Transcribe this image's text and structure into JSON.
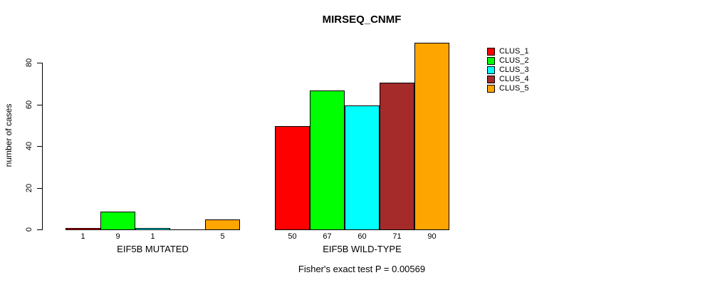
{
  "title": "MIRSEQ_CNMF",
  "ylabel": "number of cases",
  "footer": "Fisher's exact test P = 0.00569",
  "chart_data": {
    "type": "bar",
    "title": "MIRSEQ_CNMF",
    "xlabel": "",
    "ylabel": "number of cases",
    "ylim": [
      0,
      90
    ],
    "yticks": [
      0,
      20,
      40,
      60,
      80
    ],
    "grid": false,
    "annotation": "Fisher's exact test P = 0.00569",
    "series_colors": [
      "#FF0000",
      "#00FF00",
      "#00FFFF",
      "#A52A2A",
      "#FFA500"
    ],
    "legend": {
      "position": "top-right",
      "entries": [
        {
          "label": "CLUS_1",
          "color": "#FF0000"
        },
        {
          "label": "CLUS_2",
          "color": "#00FF00"
        },
        {
          "label": "CLUS_3",
          "color": "#00FFFF"
        },
        {
          "label": "CLUS_4",
          "color": "#A52A2A"
        },
        {
          "label": "CLUS_5",
          "color": "#FFA500"
        }
      ]
    },
    "groups": [
      {
        "label": "EIF5B MUTATED",
        "values": [
          1,
          9,
          1,
          0,
          5
        ],
        "bar_labels": [
          "1",
          "9",
          "1",
          "",
          "5"
        ]
      },
      {
        "label": "EIF5B WILD-TYPE",
        "values": [
          50,
          67,
          60,
          71,
          90
        ],
        "bar_labels": [
          "50",
          "67",
          "60",
          "71",
          "90"
        ]
      }
    ]
  }
}
